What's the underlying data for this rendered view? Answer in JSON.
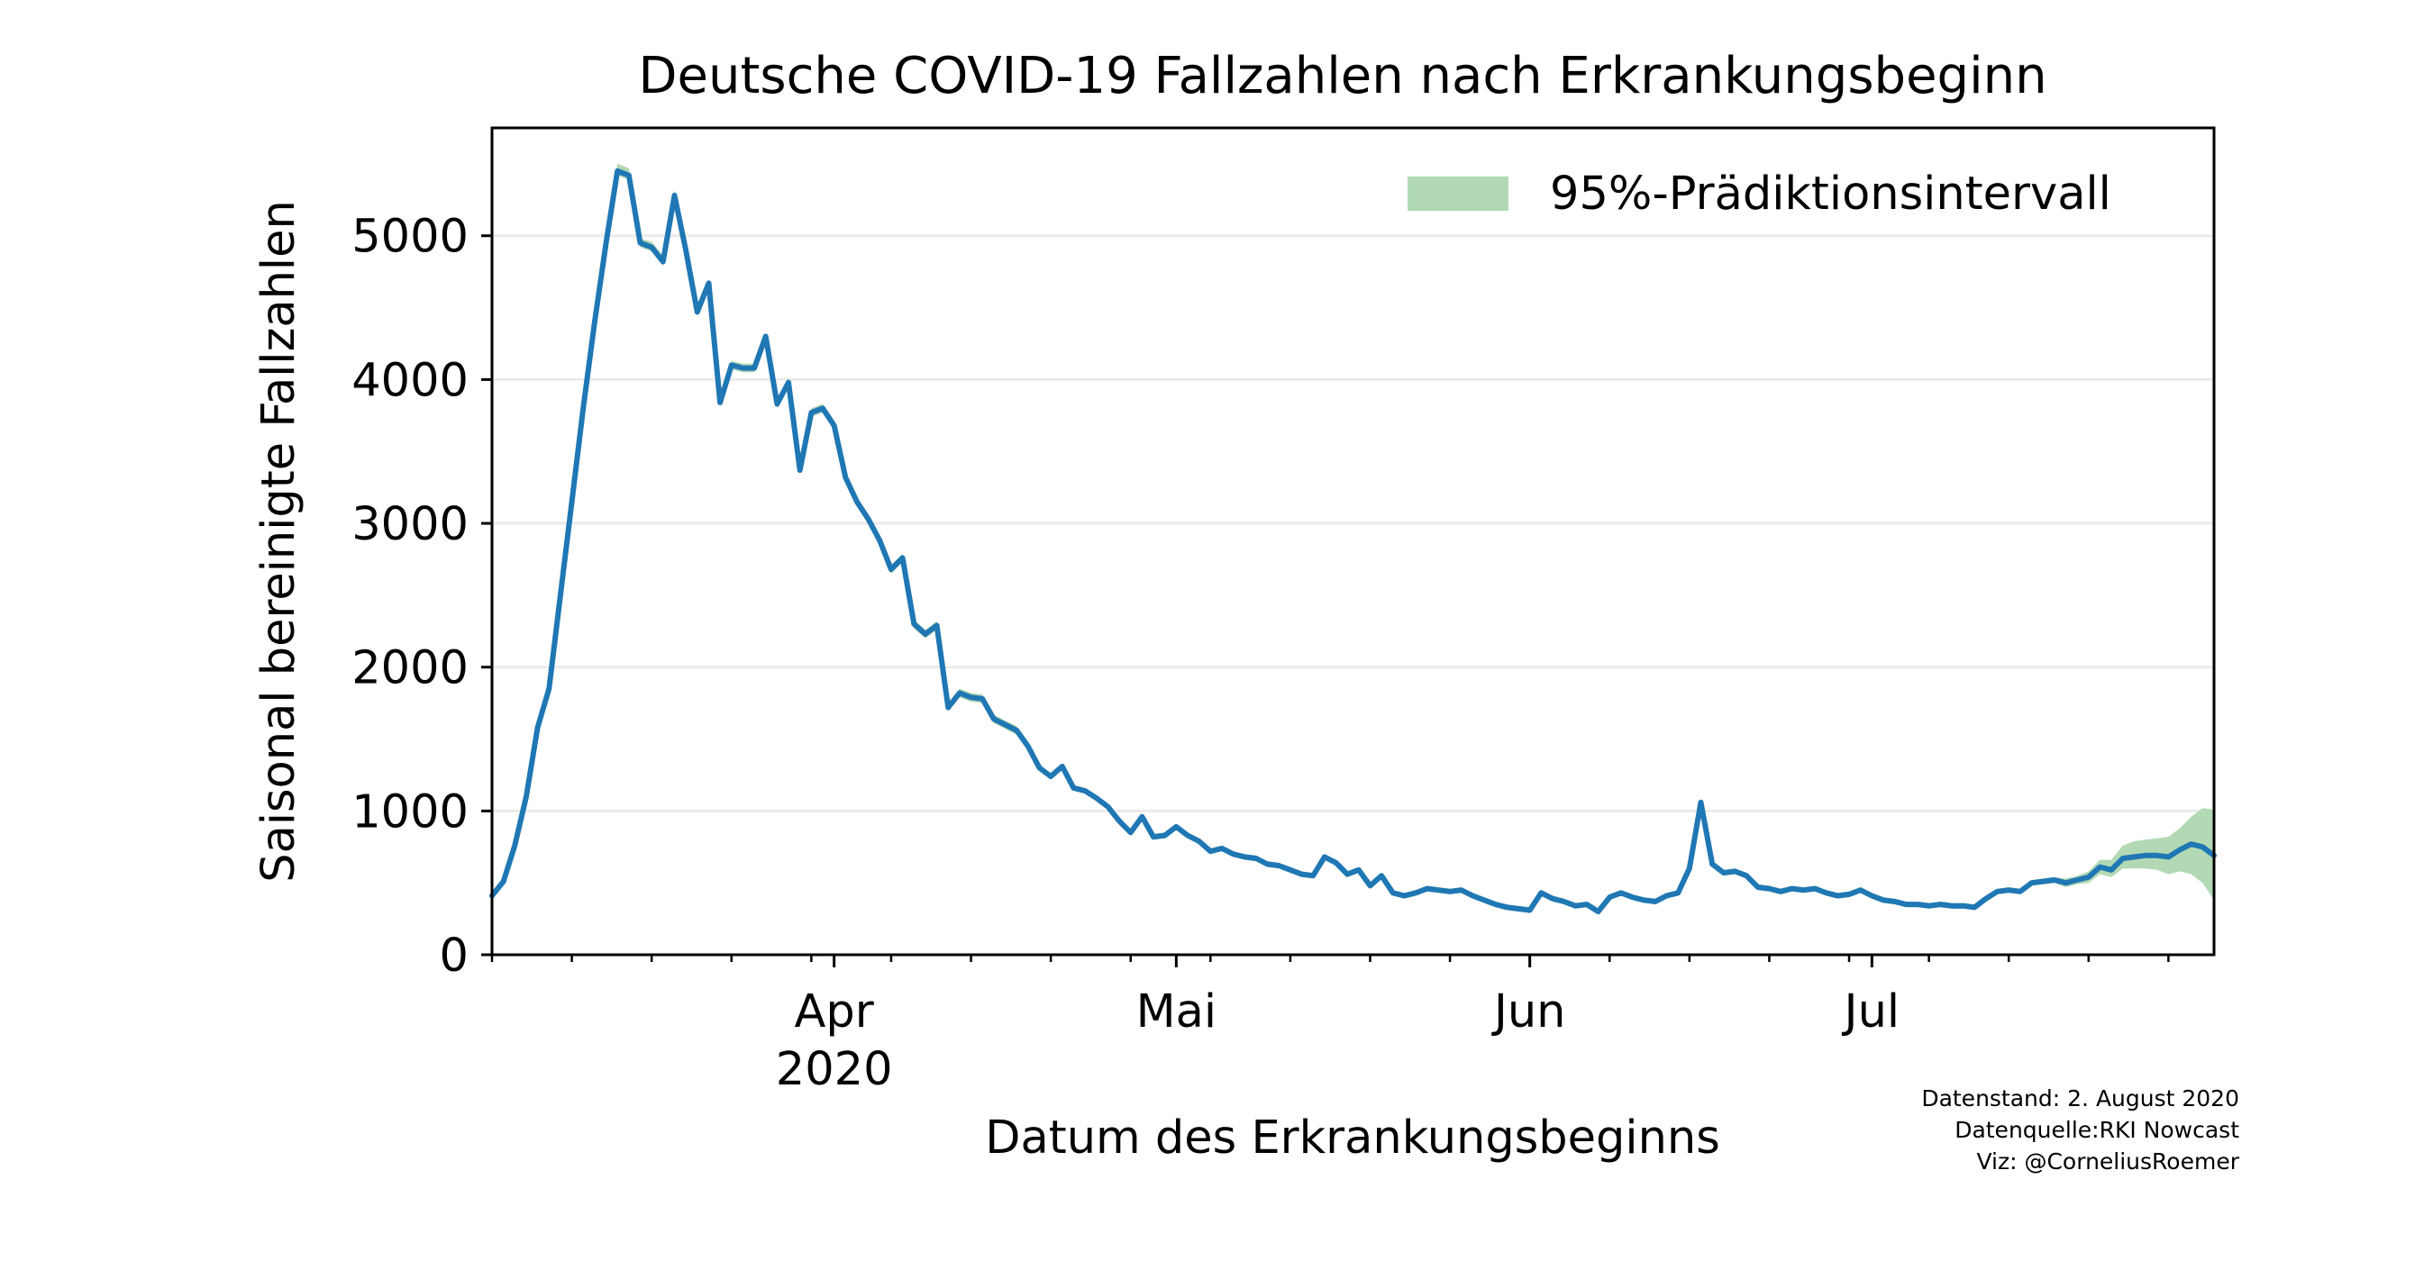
{
  "colors": {
    "line": "#1f77b4",
    "interval": "#b2d9b3",
    "grid": "#ebebeb",
    "axis": "#000000",
    "background": "#ffffff"
  },
  "chart_data": {
    "type": "line",
    "title": "Deutsche COVID-19 Fallzahlen nach Erkrankungsbeginn",
    "xlabel": "Datum des Erkrankungsbeginns",
    "ylabel": "Saisonal bereinigte Fallzahlen",
    "x_start": "2020-03-02",
    "x_end": "2020-07-31",
    "xlim": [
      "2020-03-02",
      "2020-07-31"
    ],
    "ylim": [
      0,
      5750
    ],
    "yticks": [
      0,
      1000,
      2000,
      3000,
      4000,
      5000
    ],
    "ytick_labels": [
      "0",
      "1000",
      "2000",
      "3000",
      "4000",
      "5000"
    ],
    "xticks": [
      {
        "date": "2020-04-01",
        "label": "Apr",
        "sublabel": "2020"
      },
      {
        "date": "2020-05-01",
        "label": "Mai",
        "sublabel": ""
      },
      {
        "date": "2020-06-01",
        "label": "Jun",
        "sublabel": ""
      },
      {
        "date": "2020-07-01",
        "label": "Jul",
        "sublabel": ""
      }
    ],
    "grid": "horizontal",
    "legend": {
      "position": "top-right",
      "entries": [
        "95%-Prädiktionsintervall"
      ]
    },
    "series": [
      {
        "values": [
          410,
          510,
          760,
          1100,
          1580,
          1850,
          2500,
          3150,
          3800,
          4400,
          4950,
          5450,
          5420,
          4950,
          4920,
          4820,
          5280,
          4900,
          4470,
          4670,
          3840,
          4100,
          4080,
          4080,
          4300,
          3830,
          3980,
          3370,
          3770,
          3800,
          3680,
          3320,
          3150,
          3030,
          2880,
          2680,
          2760,
          2300,
          2230,
          2290,
          1720,
          1820,
          1790,
          1780,
          1640,
          1600,
          1560,
          1450,
          1300,
          1240,
          1310,
          1160,
          1140,
          1090,
          1030,
          930,
          850,
          960,
          820,
          830,
          890,
          830,
          790,
          720,
          740,
          700,
          680,
          670,
          630,
          620,
          590,
          560,
          550,
          680,
          640,
          560,
          590,
          480,
          550,
          430,
          410,
          430,
          460,
          450,
          440,
          450,
          410,
          380,
          350,
          330,
          320,
          310,
          430,
          390,
          370,
          340,
          350,
          300,
          400,
          430,
          400,
          380,
          370,
          410,
          430,
          600,
          1060,
          630,
          570,
          580,
          550,
          470,
          460,
          440,
          460,
          450,
          460,
          430,
          410,
          420,
          450,
          410,
          380,
          370,
          350,
          350,
          340,
          350,
          340,
          340,
          330,
          390,
          440,
          450,
          440,
          500,
          510,
          520,
          500,
          520,
          540,
          610,
          590,
          670,
          680,
          690,
          690,
          680,
          730,
          770,
          750,
          690
        ]
      }
    ],
    "interval": {
      "name": "95%-Prädiktionsintervall",
      "lower": [
        400,
        500,
        750,
        1090,
        1570,
        1840,
        2490,
        3140,
        3790,
        4380,
        4920,
        5420,
        5390,
        4920,
        4890,
        4790,
        5250,
        4870,
        4440,
        4640,
        3810,
        4070,
        4050,
        4050,
        4270,
        3800,
        3950,
        3340,
        3740,
        3770,
        3650,
        3290,
        3120,
        3000,
        2850,
        2650,
        2730,
        2270,
        2200,
        2260,
        1690,
        1790,
        1760,
        1750,
        1610,
        1570,
        1530,
        1420,
        1280,
        1220,
        1290,
        1140,
        1120,
        1070,
        1010,
        910,
        830,
        940,
        800,
        810,
        870,
        810,
        770,
        700,
        720,
        680,
        660,
        650,
        610,
        600,
        570,
        540,
        530,
        660,
        620,
        540,
        570,
        460,
        530,
        410,
        390,
        410,
        440,
        430,
        420,
        430,
        390,
        360,
        330,
        310,
        300,
        290,
        410,
        370,
        350,
        320,
        330,
        280,
        380,
        410,
        380,
        360,
        350,
        390,
        410,
        580,
        1040,
        610,
        550,
        560,
        530,
        450,
        440,
        420,
        440,
        430,
        440,
        410,
        390,
        400,
        430,
        390,
        360,
        350,
        330,
        330,
        320,
        330,
        320,
        320,
        310,
        370,
        420,
        430,
        420,
        480,
        490,
        500,
        470,
        490,
        500,
        560,
        540,
        600,
        600,
        600,
        590,
        560,
        580,
        560,
        500,
        380
      ],
      "upper": [
        420,
        520,
        770,
        1110,
        1590,
        1860,
        2510,
        3160,
        3810,
        4420,
        4980,
        5500,
        5470,
        4980,
        4960,
        4860,
        5320,
        4930,
        4500,
        4700,
        3870,
        4130,
        4110,
        4110,
        4330,
        3860,
        4010,
        3400,
        3800,
        3830,
        3710,
        3350,
        3180,
        3060,
        2910,
        2710,
        2790,
        2330,
        2260,
        2320,
        1750,
        1850,
        1820,
        1810,
        1670,
        1630,
        1590,
        1480,
        1320,
        1260,
        1330,
        1180,
        1160,
        1110,
        1050,
        950,
        870,
        980,
        840,
        850,
        910,
        850,
        810,
        740,
        760,
        720,
        700,
        690,
        650,
        640,
        610,
        580,
        570,
        700,
        660,
        580,
        610,
        500,
        570,
        450,
        430,
        450,
        480,
        470,
        460,
        470,
        430,
        400,
        370,
        350,
        340,
        330,
        450,
        410,
        390,
        360,
        370,
        320,
        420,
        450,
        420,
        400,
        390,
        430,
        450,
        620,
        1080,
        650,
        590,
        600,
        570,
        490,
        480,
        460,
        480,
        470,
        480,
        450,
        430,
        440,
        470,
        430,
        400,
        390,
        370,
        370,
        360,
        370,
        360,
        360,
        350,
        410,
        460,
        470,
        460,
        520,
        530,
        540,
        530,
        550,
        580,
        660,
        660,
        760,
        790,
        800,
        810,
        820,
        880,
        960,
        1020,
        1010
      ]
    }
  },
  "credits": [
    "Datenstand: 2. August 2020",
    "Datenquelle:RKI Nowcast",
    "Viz: @CorneliusRoemer"
  ]
}
